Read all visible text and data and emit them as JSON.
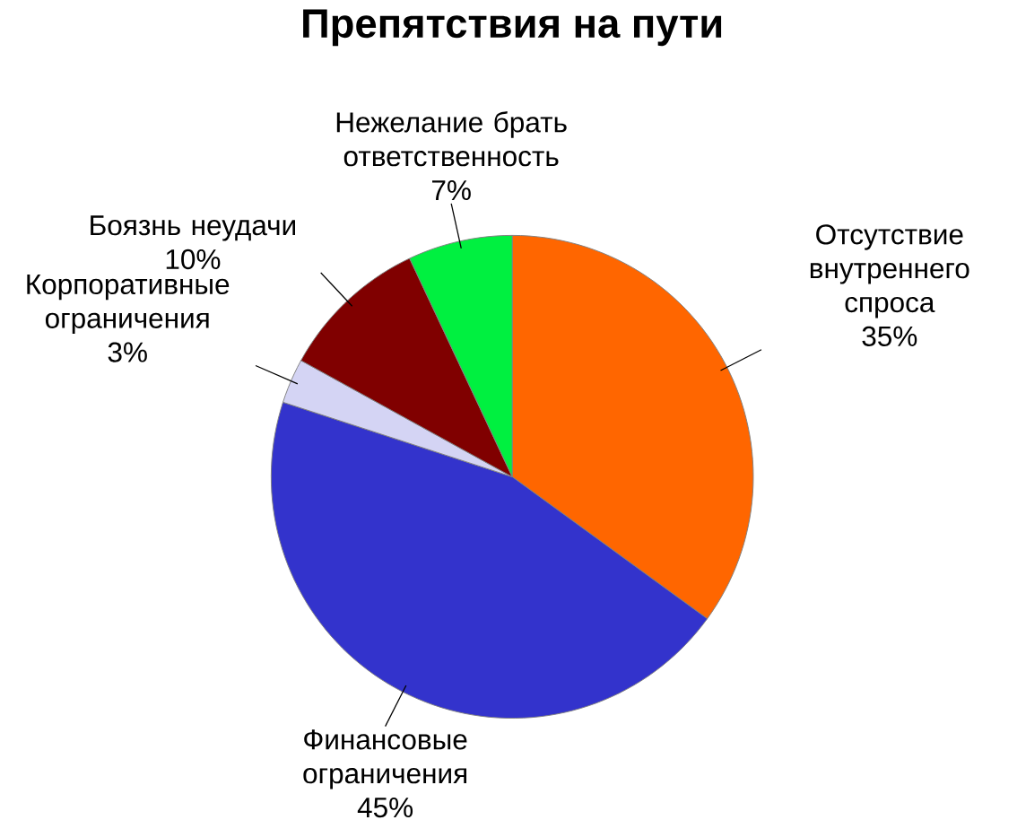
{
  "chart_data": {
    "type": "pie",
    "title": "Препятствия на пути",
    "categories": [
      "Отсутствие внутреннего спроса",
      "Финансовые ограничения",
      "Корпоративные ограничения",
      "Боязнь неудачи",
      "Нежелание брать ответственность"
    ],
    "values": [
      35,
      45,
      3,
      10,
      7
    ],
    "colors": [
      "#ff6600",
      "#3333cc",
      "#d4d4f4",
      "#800000",
      "#00f040"
    ],
    "value_labels": [
      "35%",
      "45%",
      "3%",
      "10%",
      "7%"
    ]
  }
}
